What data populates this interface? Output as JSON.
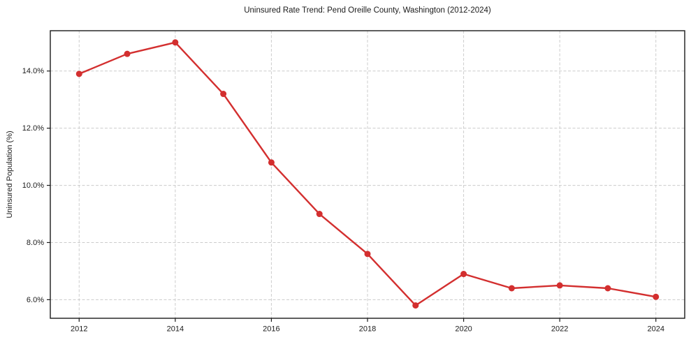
{
  "figure": {
    "kind": "matplotlib-style line chart"
  },
  "chart_data": {
    "type": "line",
    "title": "Uninsured Rate Trend: Pend Oreille County, Washington (2012-2024)",
    "xlabel": "",
    "ylabel": "Uninsured Population (%)",
    "x": [
      2012,
      2013,
      2014,
      2015,
      2016,
      2017,
      2018,
      2019,
      2020,
      2021,
      2022,
      2023,
      2024
    ],
    "values": [
      13.9,
      14.6,
      15.0,
      13.2,
      10.8,
      9.0,
      7.6,
      5.8,
      6.9,
      6.4,
      6.5,
      6.4,
      6.1
    ],
    "series_name": "Uninsured Population (%)",
    "xlim": [
      2011.4,
      2024.6
    ],
    "ylim": [
      5.35,
      15.41
    ],
    "x_ticks": [
      2012,
      2014,
      2016,
      2018,
      2020,
      2022,
      2024
    ],
    "y_ticks": [
      6,
      8,
      10,
      12,
      14
    ],
    "y_tick_suffix": "%",
    "y_tick_decimals": 1,
    "grid": "dashed",
    "legend": "none",
    "line_color": "#d32f2f",
    "marker": "circle",
    "grid_color": "#cccccc",
    "spine_color": "#1a1a1a"
  }
}
